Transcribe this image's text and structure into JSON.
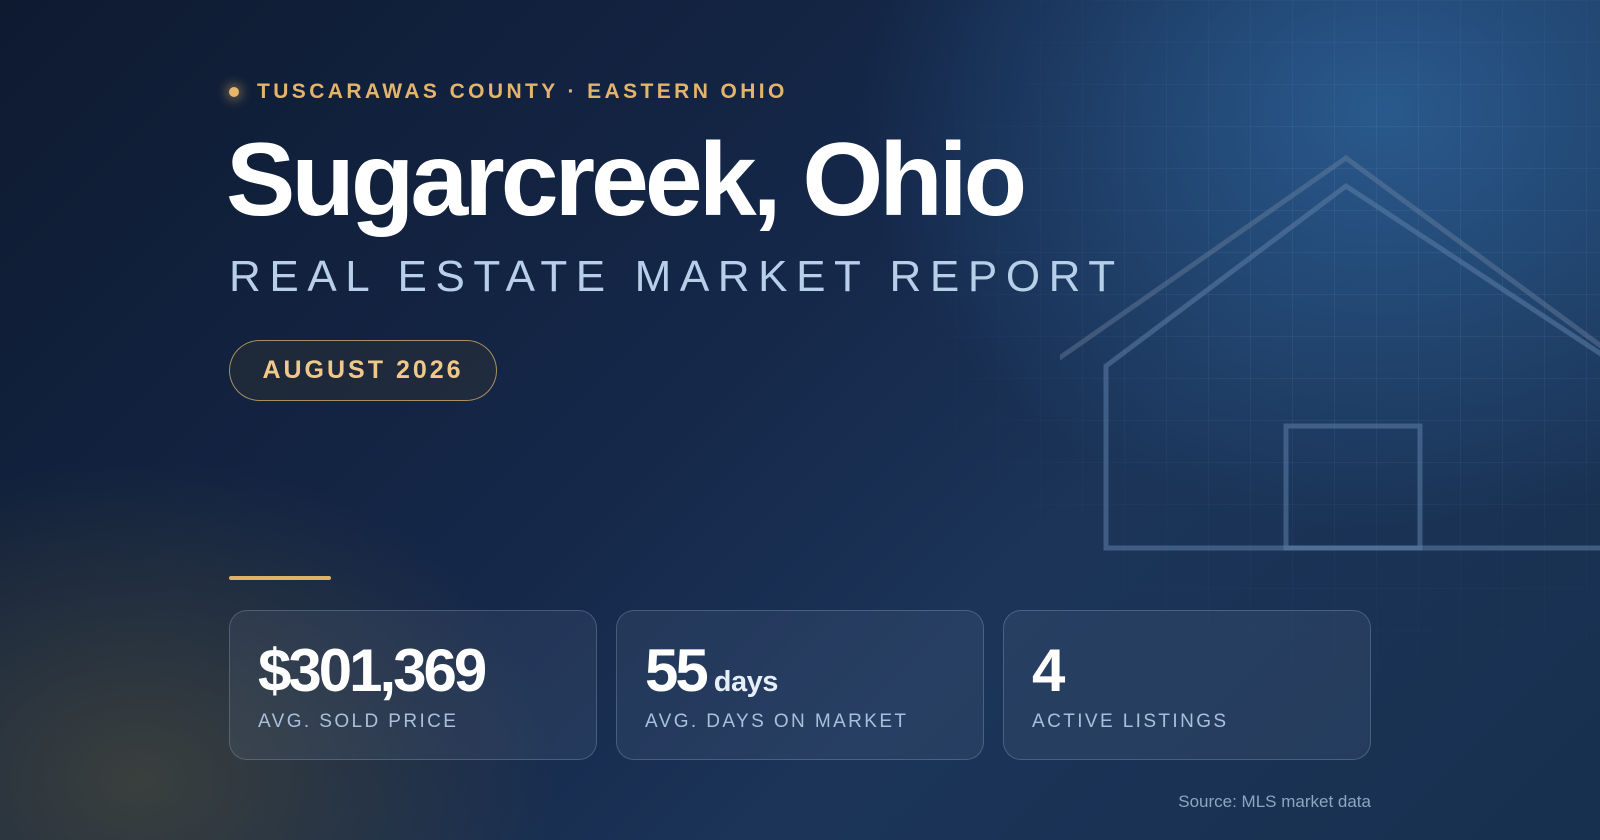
{
  "header": {
    "eyebrow": "TUSCARAWAS COUNTY · EASTERN OHIO",
    "title": "Sugarcreek, Ohio",
    "subtitle": "REAL ESTATE MARKET REPORT",
    "date_badge": "AUGUST 2026"
  },
  "stats": [
    {
      "value": "$301,369",
      "unit": "",
      "label": "AVG. SOLD PRICE"
    },
    {
      "value": "55",
      "unit": "days",
      "label": "AVG. DAYS ON MARKET"
    },
    {
      "value": "4",
      "unit": "",
      "label": "ACTIVE LISTINGS"
    }
  ],
  "footer": {
    "source": "Source: MLS market data"
  },
  "colors": {
    "accent_gold": "#e3b46b",
    "title_white": "#ffffff",
    "subtitle_blue": "#b8cfea",
    "background_navy": "#15284a"
  },
  "decor": {
    "house_icon": "house-outline-icon",
    "dot_icon": "dot-icon"
  }
}
